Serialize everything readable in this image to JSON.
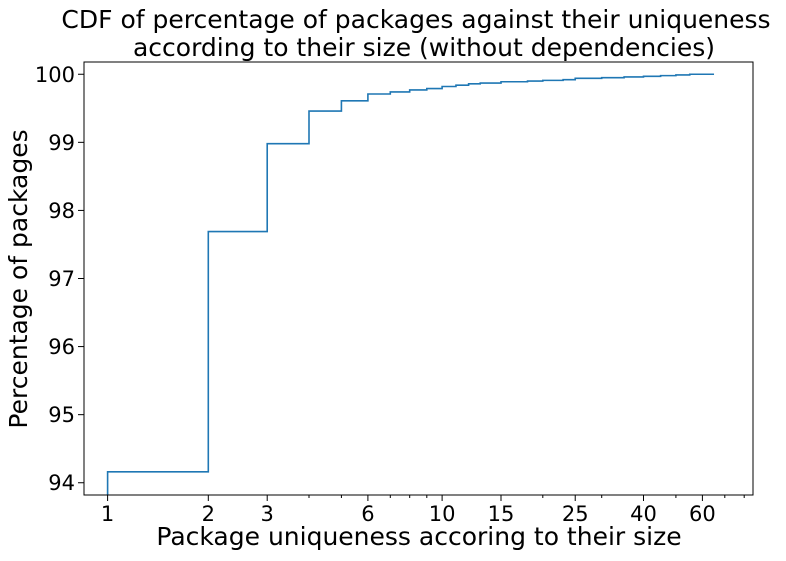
{
  "chart_data": {
    "type": "line",
    "subtype": "step-cdf",
    "title": {
      "line1": "CDF of percentage of packages against their uniqueness",
      "line2": "according to their size (without dependencies)"
    },
    "xlabel": "Package uniqueness accoring to their size",
    "ylabel": "Percentage of packages",
    "x_scale": "log",
    "xlim": [
      0.85,
      85
    ],
    "ylim": [
      93.82,
      100.18
    ],
    "x_ticks": [
      {
        "value": 1,
        "label": "1"
      },
      {
        "value": 2,
        "label": "2"
      },
      {
        "value": 3,
        "label": "3"
      },
      {
        "value": 6,
        "label": "6"
      },
      {
        "value": 10,
        "label": "10"
      },
      {
        "value": 15,
        "label": "15"
      },
      {
        "value": 25,
        "label": "25"
      },
      {
        "value": 40,
        "label": "40"
      },
      {
        "value": 60,
        "label": "60"
      }
    ],
    "y_ticks": [
      {
        "value": 94,
        "label": "94"
      },
      {
        "value": 95,
        "label": "95"
      },
      {
        "value": 96,
        "label": "96"
      },
      {
        "value": 97,
        "label": "97"
      },
      {
        "value": 98,
        "label": "98"
      },
      {
        "value": 99,
        "label": "99"
      },
      {
        "value": 100,
        "label": "100"
      }
    ],
    "grid": false,
    "legend": "none",
    "series": [
      {
        "color": "#1f77b4",
        "x": [
          1,
          2,
          3,
          4,
          5,
          6,
          7,
          8,
          9,
          10,
          11,
          12,
          13,
          15,
          18,
          20,
          23,
          25,
          30,
          35,
          40,
          45,
          50,
          55,
          60,
          65
        ],
        "y": [
          94.16,
          97.69,
          98.98,
          99.46,
          99.61,
          99.71,
          99.74,
          99.77,
          99.79,
          99.82,
          99.84,
          99.86,
          99.87,
          99.89,
          99.9,
          99.91,
          99.92,
          99.94,
          99.95,
          99.96,
          99.97,
          99.98,
          99.99,
          100.0,
          100.0,
          100.0
        ]
      }
    ]
  }
}
